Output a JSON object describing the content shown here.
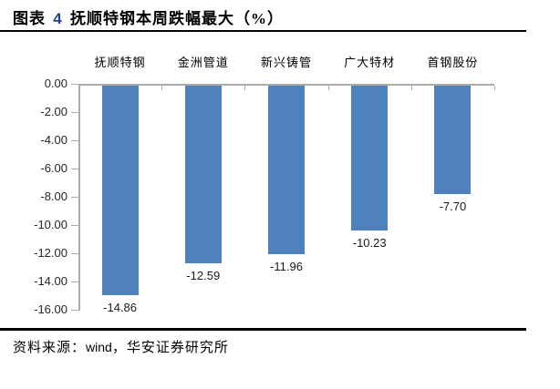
{
  "header": {
    "prefix": "图表",
    "number": "4",
    "rest": "抚顺特钢本周跌幅最大（%）"
  },
  "footer": {
    "label": "资料来源：",
    "source_en": "wind",
    "source_rest": "，华安证券研究所"
  },
  "colors": {
    "bar": "#4F81BD",
    "axis": "#ABABAB",
    "title_number": "#1F4095",
    "text": "#000000"
  },
  "chart_data": {
    "type": "bar",
    "title": "图表 4 抚顺特钢本周跌幅最大（%）",
    "source": "资料来源：wind，华安证券研究所",
    "categories": [
      "抚顺特钢",
      "金洲管道",
      "新兴铸管",
      "广大特材",
      "首钢股份"
    ],
    "values": [
      -14.86,
      -12.59,
      -11.96,
      -10.23,
      -7.7
    ],
    "value_labels": [
      "-14.86",
      "-12.59",
      "-11.96",
      "-10.23",
      "-7.70"
    ],
    "ylim": [
      -16,
      0
    ],
    "yticks": [
      0,
      -2,
      -4,
      -6,
      -8,
      -10,
      -12,
      -14,
      -16
    ],
    "ytick_labels": [
      "0.00",
      "-2.00",
      "-4.00",
      "-6.00",
      "-8.00",
      "-10.00",
      "-12.00",
      "-14.00",
      "-16.00"
    ],
    "grid": "off",
    "legend": "none",
    "category_position": "top",
    "value_label_position": "below-bar",
    "bar_color": "#4F81BD"
  }
}
